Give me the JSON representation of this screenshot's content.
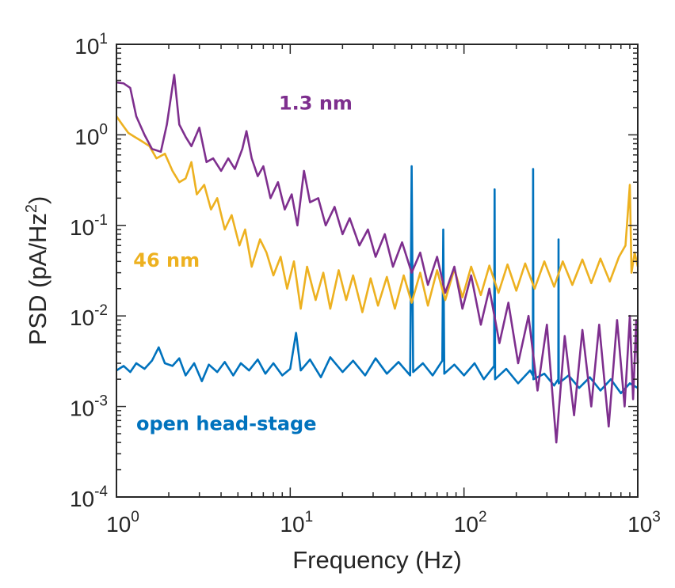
{
  "chart_data": {
    "type": "line",
    "xlabel": "Frequency (Hz)",
    "ylabel": "PSD (pA/Hz",
    "ylabel_sup": "2",
    "ylabel_close": ")",
    "x_scale": "log",
    "y_scale": "log",
    "xlim": [
      1,
      1000
    ],
    "ylim": [
      0.0001,
      10
    ],
    "grid": false,
    "legend": "inline labels",
    "x_ticks": [
      {
        "value": 1,
        "base": "10",
        "exp": "0"
      },
      {
        "value": 10,
        "base": "10",
        "exp": "1"
      },
      {
        "value": 100,
        "base": "10",
        "exp": "2"
      },
      {
        "value": 1000,
        "base": "10",
        "exp": "3"
      }
    ],
    "y_ticks": [
      {
        "value": 10,
        "base": "10",
        "exp": "1"
      },
      {
        "value": 1,
        "base": "10",
        "exp": "0"
      },
      {
        "value": 0.1,
        "base": "10",
        "exp": "-1"
      },
      {
        "value": 0.01,
        "base": "10",
        "exp": "-2"
      },
      {
        "value": 0.001,
        "base": "10",
        "exp": "-3"
      },
      {
        "value": 0.0001,
        "base": "10",
        "exp": "-4"
      }
    ],
    "series": [
      {
        "name": "open head-stage",
        "color": "#0072BD",
        "points": [
          [
            1,
            0.0025
          ],
          [
            1.1,
            0.0028
          ],
          [
            1.2,
            0.0024
          ],
          [
            1.3,
            0.003
          ],
          [
            1.45,
            0.0026
          ],
          [
            1.6,
            0.0032
          ],
          [
            1.75,
            0.0045
          ],
          [
            1.9,
            0.003
          ],
          [
            2.1,
            0.0028
          ],
          [
            2.3,
            0.0034
          ],
          [
            2.5,
            0.0022
          ],
          [
            2.8,
            0.003
          ],
          [
            3.1,
            0.0019
          ],
          [
            3.4,
            0.0029
          ],
          [
            3.8,
            0.0024
          ],
          [
            4.2,
            0.0031
          ],
          [
            4.7,
            0.0022
          ],
          [
            5.2,
            0.003
          ],
          [
            5.8,
            0.0025
          ],
          [
            6.5,
            0.0033
          ],
          [
            7.2,
            0.0023
          ],
          [
            8,
            0.003
          ],
          [
            9,
            0.0022
          ],
          [
            10,
            0.0026
          ],
          [
            10.8,
            0.0065
          ],
          [
            11.5,
            0.0025
          ],
          [
            13,
            0.0033
          ],
          [
            15,
            0.0021
          ],
          [
            17,
            0.0035
          ],
          [
            20,
            0.0024
          ],
          [
            23,
            0.0032
          ],
          [
            27,
            0.0022
          ],
          [
            31,
            0.0034
          ],
          [
            36,
            0.0023
          ],
          [
            42,
            0.0031
          ],
          [
            49,
            0.0022
          ],
          [
            50,
            0.45
          ],
          [
            51,
            0.0024
          ],
          [
            58,
            0.003
          ],
          [
            66,
            0.0022
          ],
          [
            75,
            0.0032
          ],
          [
            76,
            0.09
          ],
          [
            77,
            0.0023
          ],
          [
            88,
            0.0029
          ],
          [
            100,
            0.0022
          ],
          [
            115,
            0.003
          ],
          [
            130,
            0.002
          ],
          [
            149,
            0.0028
          ],
          [
            150,
            0.25
          ],
          [
            151,
            0.002
          ],
          [
            175,
            0.0026
          ],
          [
            205,
            0.0018
          ],
          [
            240,
            0.0025
          ],
          [
            249,
            0.0022
          ],
          [
            250,
            0.42
          ],
          [
            251,
            0.002
          ],
          [
            290,
            0.0023
          ],
          [
            330,
            0.0017
          ],
          [
            349,
            0.002
          ],
          [
            350,
            0.07
          ],
          [
            351,
            0.0018
          ],
          [
            400,
            0.0022
          ],
          [
            460,
            0.0016
          ],
          [
            530,
            0.0021
          ],
          [
            610,
            0.0015
          ],
          [
            700,
            0.002
          ],
          [
            800,
            0.0014
          ],
          [
            900,
            0.0018
          ],
          [
            1000,
            0.0016
          ]
        ]
      },
      {
        "name": "46 nm",
        "color": "#EDB120",
        "points": [
          [
            1,
            1.6
          ],
          [
            1.08,
            1.3
          ],
          [
            1.17,
            1.05
          ],
          [
            1.27,
            0.95
          ],
          [
            1.4,
            0.85
          ],
          [
            1.55,
            0.75
          ],
          [
            1.7,
            0.55
          ],
          [
            1.9,
            0.62
          ],
          [
            2.1,
            0.4
          ],
          [
            2.3,
            0.3
          ],
          [
            2.5,
            0.33
          ],
          [
            2.7,
            0.5
          ],
          [
            2.9,
            0.22
          ],
          [
            3.2,
            0.28
          ],
          [
            3.5,
            0.15
          ],
          [
            3.8,
            0.2
          ],
          [
            4.2,
            0.09
          ],
          [
            4.6,
            0.13
          ],
          [
            5.1,
            0.06
          ],
          [
            5.5,
            0.09
          ],
          [
            6,
            0.035
          ],
          [
            6.7,
            0.07
          ],
          [
            7.3,
            0.05
          ],
          [
            8,
            0.028
          ],
          [
            8.8,
            0.045
          ],
          [
            9.6,
            0.02
          ],
          [
            10.5,
            0.04
          ],
          [
            11.5,
            0.012
          ],
          [
            12.5,
            0.035
          ],
          [
            14,
            0.015
          ],
          [
            15.5,
            0.03
          ],
          [
            17,
            0.012
          ],
          [
            19,
            0.032
          ],
          [
            21,
            0.015
          ],
          [
            23,
            0.028
          ],
          [
            26,
            0.011
          ],
          [
            29,
            0.026
          ],
          [
            32,
            0.013
          ],
          [
            36,
            0.027
          ],
          [
            40,
            0.012
          ],
          [
            45,
            0.028
          ],
          [
            50,
            0.014
          ],
          [
            56,
            0.03
          ],
          [
            62,
            0.013
          ],
          [
            70,
            0.032
          ],
          [
            78,
            0.015
          ],
          [
            88,
            0.033
          ],
          [
            98,
            0.016
          ],
          [
            110,
            0.035
          ],
          [
            125,
            0.017
          ],
          [
            140,
            0.036
          ],
          [
            158,
            0.018
          ],
          [
            178,
            0.037
          ],
          [
            200,
            0.019
          ],
          [
            225,
            0.038
          ],
          [
            255,
            0.02
          ],
          [
            290,
            0.04
          ],
          [
            330,
            0.021
          ],
          [
            370,
            0.04
          ],
          [
            420,
            0.022
          ],
          [
            480,
            0.042
          ],
          [
            540,
            0.023
          ],
          [
            610,
            0.043
          ],
          [
            690,
            0.024
          ],
          [
            780,
            0.045
          ],
          [
            850,
            0.06
          ],
          [
            900,
            0.28
          ],
          [
            920,
            0.03
          ],
          [
            960,
            0.05
          ],
          [
            1000,
            0.035
          ]
        ]
      },
      {
        "name": "1.3 nm",
        "color": "#7E2F8E",
        "points": [
          [
            1,
            3.8
          ],
          [
            1.1,
            3.7
          ],
          [
            1.2,
            3.3
          ],
          [
            1.3,
            1.6
          ],
          [
            1.45,
            1.0
          ],
          [
            1.6,
            0.7
          ],
          [
            1.8,
            0.65
          ],
          [
            1.95,
            1.3
          ],
          [
            2.15,
            4.6
          ],
          [
            2.3,
            1.3
          ],
          [
            2.5,
            0.95
          ],
          [
            2.7,
            0.75
          ],
          [
            3,
            1.2
          ],
          [
            3.3,
            0.5
          ],
          [
            3.6,
            0.55
          ],
          [
            4,
            0.4
          ],
          [
            4.4,
            0.55
          ],
          [
            4.8,
            0.42
          ],
          [
            5.3,
            0.7
          ],
          [
            5.6,
            1.1
          ],
          [
            6,
            0.55
          ],
          [
            6.5,
            0.35
          ],
          [
            7,
            0.45
          ],
          [
            7.7,
            0.2
          ],
          [
            8.5,
            0.3
          ],
          [
            9.3,
            0.15
          ],
          [
            10.2,
            0.22
          ],
          [
            11,
            0.1
          ],
          [
            12,
            0.4
          ],
          [
            13,
            0.18
          ],
          [
            14.5,
            0.2
          ],
          [
            16,
            0.1
          ],
          [
            18,
            0.16
          ],
          [
            20,
            0.08
          ],
          [
            22,
            0.12
          ],
          [
            25,
            0.06
          ],
          [
            28,
            0.09
          ],
          [
            31,
            0.045
          ],
          [
            35,
            0.08
          ],
          [
            39,
            0.035
          ],
          [
            44,
            0.065
          ],
          [
            50,
            0.03
          ],
          [
            56,
            0.05
          ],
          [
            62,
            0.022
          ],
          [
            70,
            0.045
          ],
          [
            78,
            0.018
          ],
          [
            88,
            0.035
          ],
          [
            98,
            0.012
          ],
          [
            110,
            0.028
          ],
          [
            125,
            0.008
          ],
          [
            140,
            0.02
          ],
          [
            160,
            0.005
          ],
          [
            180,
            0.014
          ],
          [
            205,
            0.003
          ],
          [
            235,
            0.01
          ],
          [
            265,
            0.0015
          ],
          [
            300,
            0.008
          ],
          [
            340,
            0.0004
          ],
          [
            380,
            0.006
          ],
          [
            430,
            0.0008
          ],
          [
            480,
            0.007
          ],
          [
            540,
            0.001
          ],
          [
            600,
            0.008
          ],
          [
            680,
            0.0006
          ],
          [
            760,
            0.009
          ],
          [
            840,
            0.001
          ],
          [
            900,
            0.01
          ],
          [
            940,
            0.0012
          ],
          [
            980,
            0.009
          ],
          [
            1000,
            0.003
          ]
        ]
      }
    ],
    "annotations": [
      {
        "text": "1.3 nm",
        "series": "1.3 nm",
        "at": [
          8.6,
          1.9
        ]
      },
      {
        "text": "46 nm",
        "series": "46 nm",
        "at": [
          1.25,
          0.035
        ]
      },
      {
        "text": "open head-stage",
        "series": "open head-stage",
        "at": [
          1.3,
          0.00055
        ]
      }
    ]
  }
}
